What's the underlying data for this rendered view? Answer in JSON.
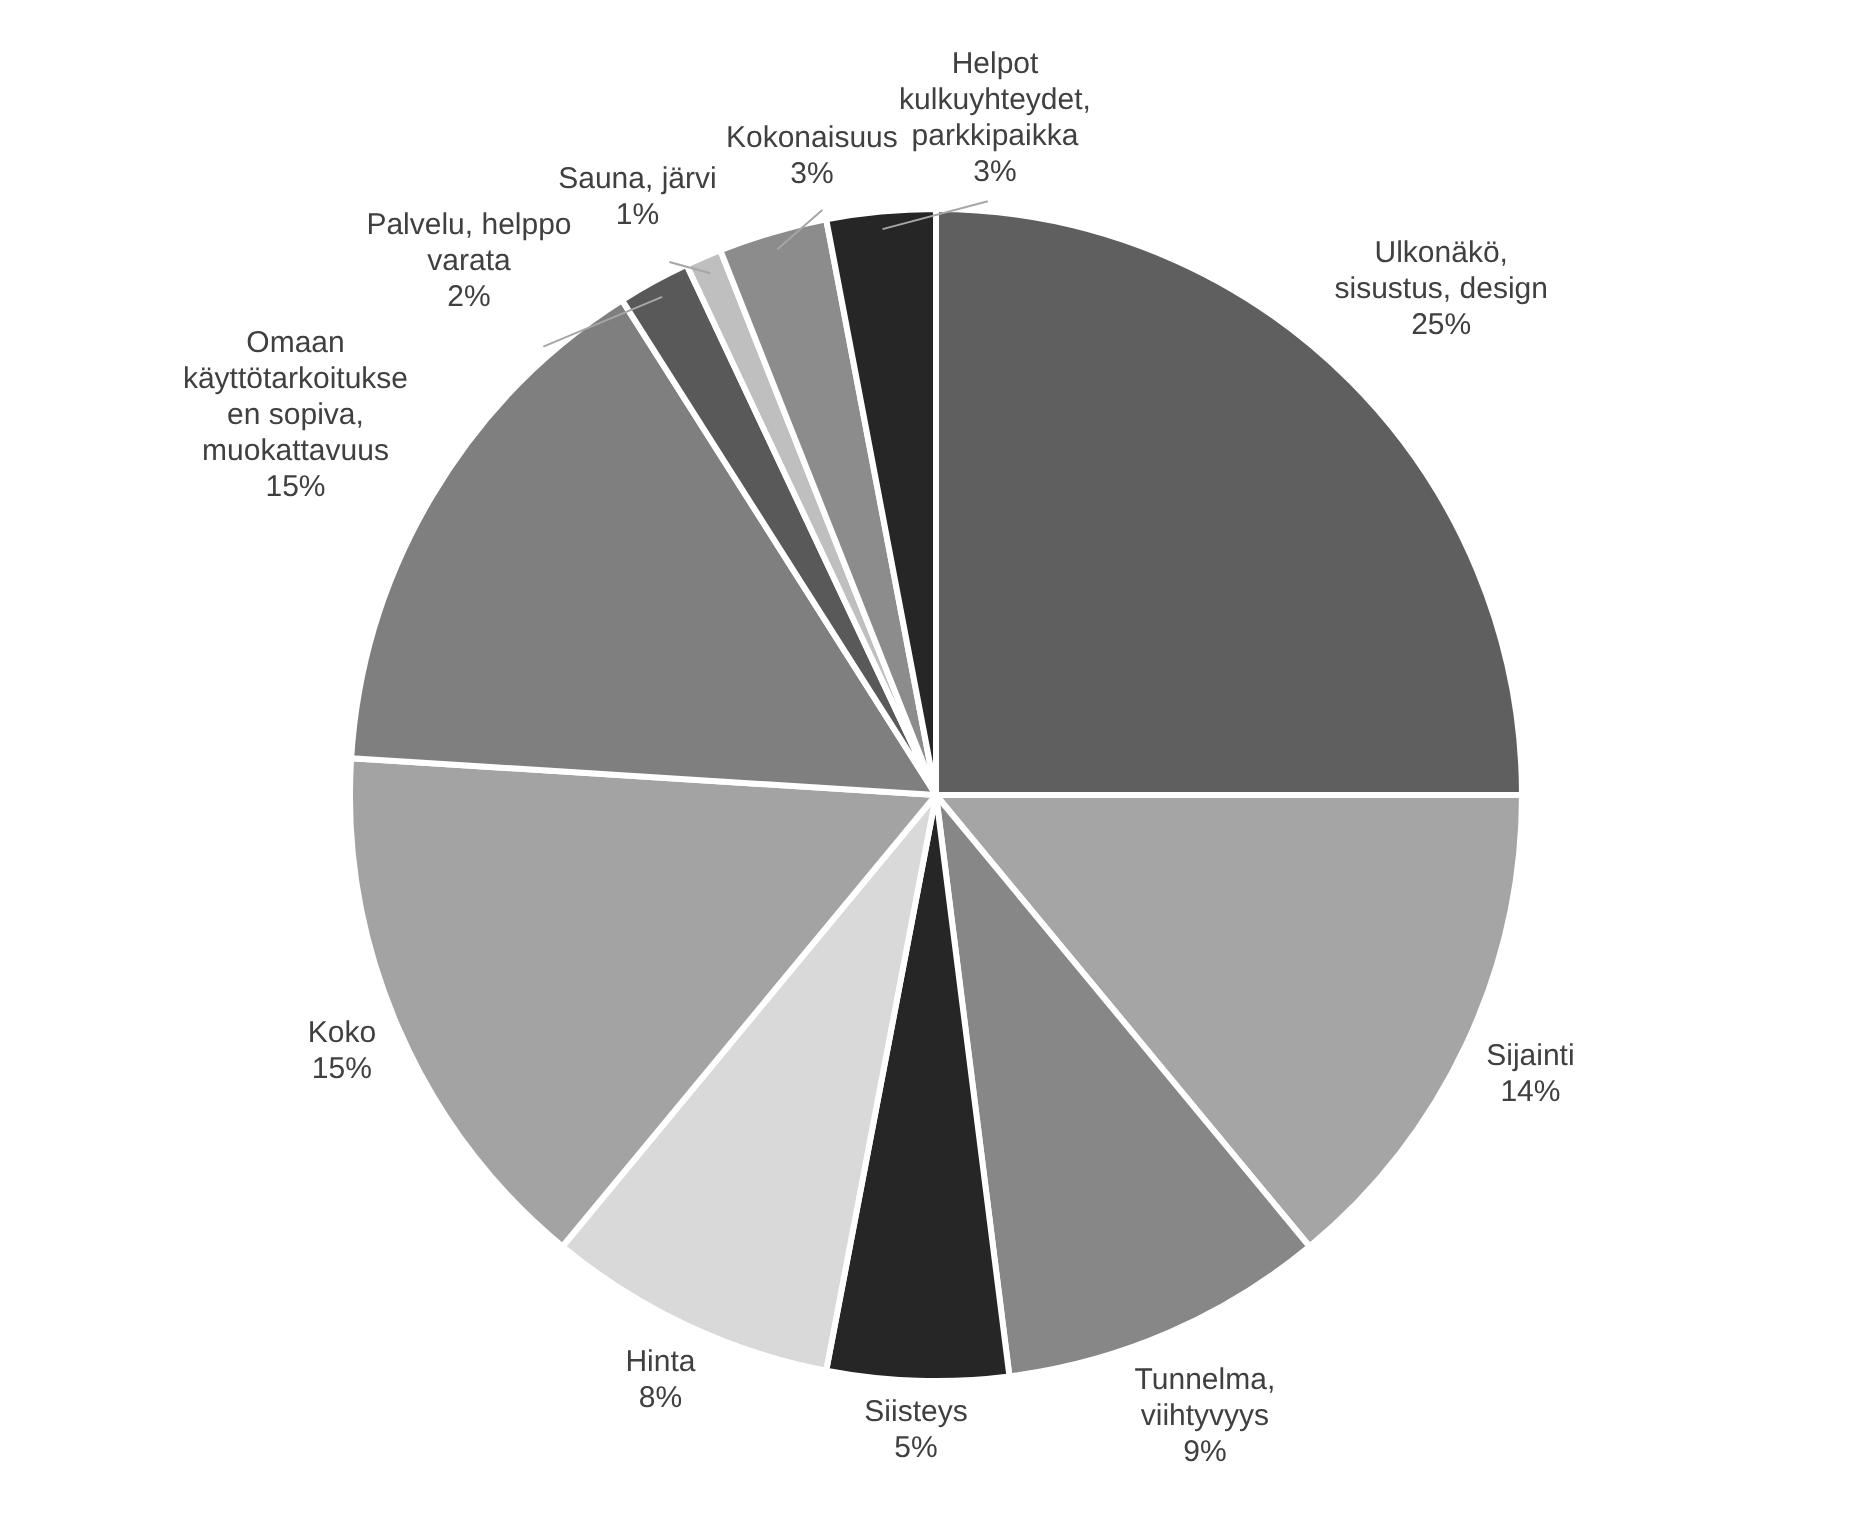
{
  "chart_data": {
    "type": "pie",
    "categories": [
      "Ulkonäkö, sisustus, design",
      "Sijainti",
      "Tunnelma, viihtyvyys",
      "Siisteys",
      "Hinta",
      "Koko",
      "Omaan käyttötarkoitukseen sopiva, muokattavuus",
      "Palvelu, helppo varata",
      "Sauna, järvi",
      "Kokonaisuus",
      "Helpot kulkuyhteydet, parkkipaikka"
    ],
    "values": [
      25,
      14,
      9,
      5,
      8,
      15,
      15,
      2,
      1,
      3,
      3
    ],
    "value_labels": [
      "25%",
      "14%",
      "9%",
      "5%",
      "8%",
      "15%",
      "15%",
      "2%",
      "1%",
      "3%",
      "3%"
    ],
    "colors": [
      "#5f5f5f",
      "#a5a5a5",
      "#878787",
      "#262626",
      "#d9d9d9",
      "#a3a3a3",
      "#7f7f7f",
      "#595959",
      "#bfbfbf",
      "#8c8c8c",
      "#262626"
    ],
    "legend": false
  }
}
